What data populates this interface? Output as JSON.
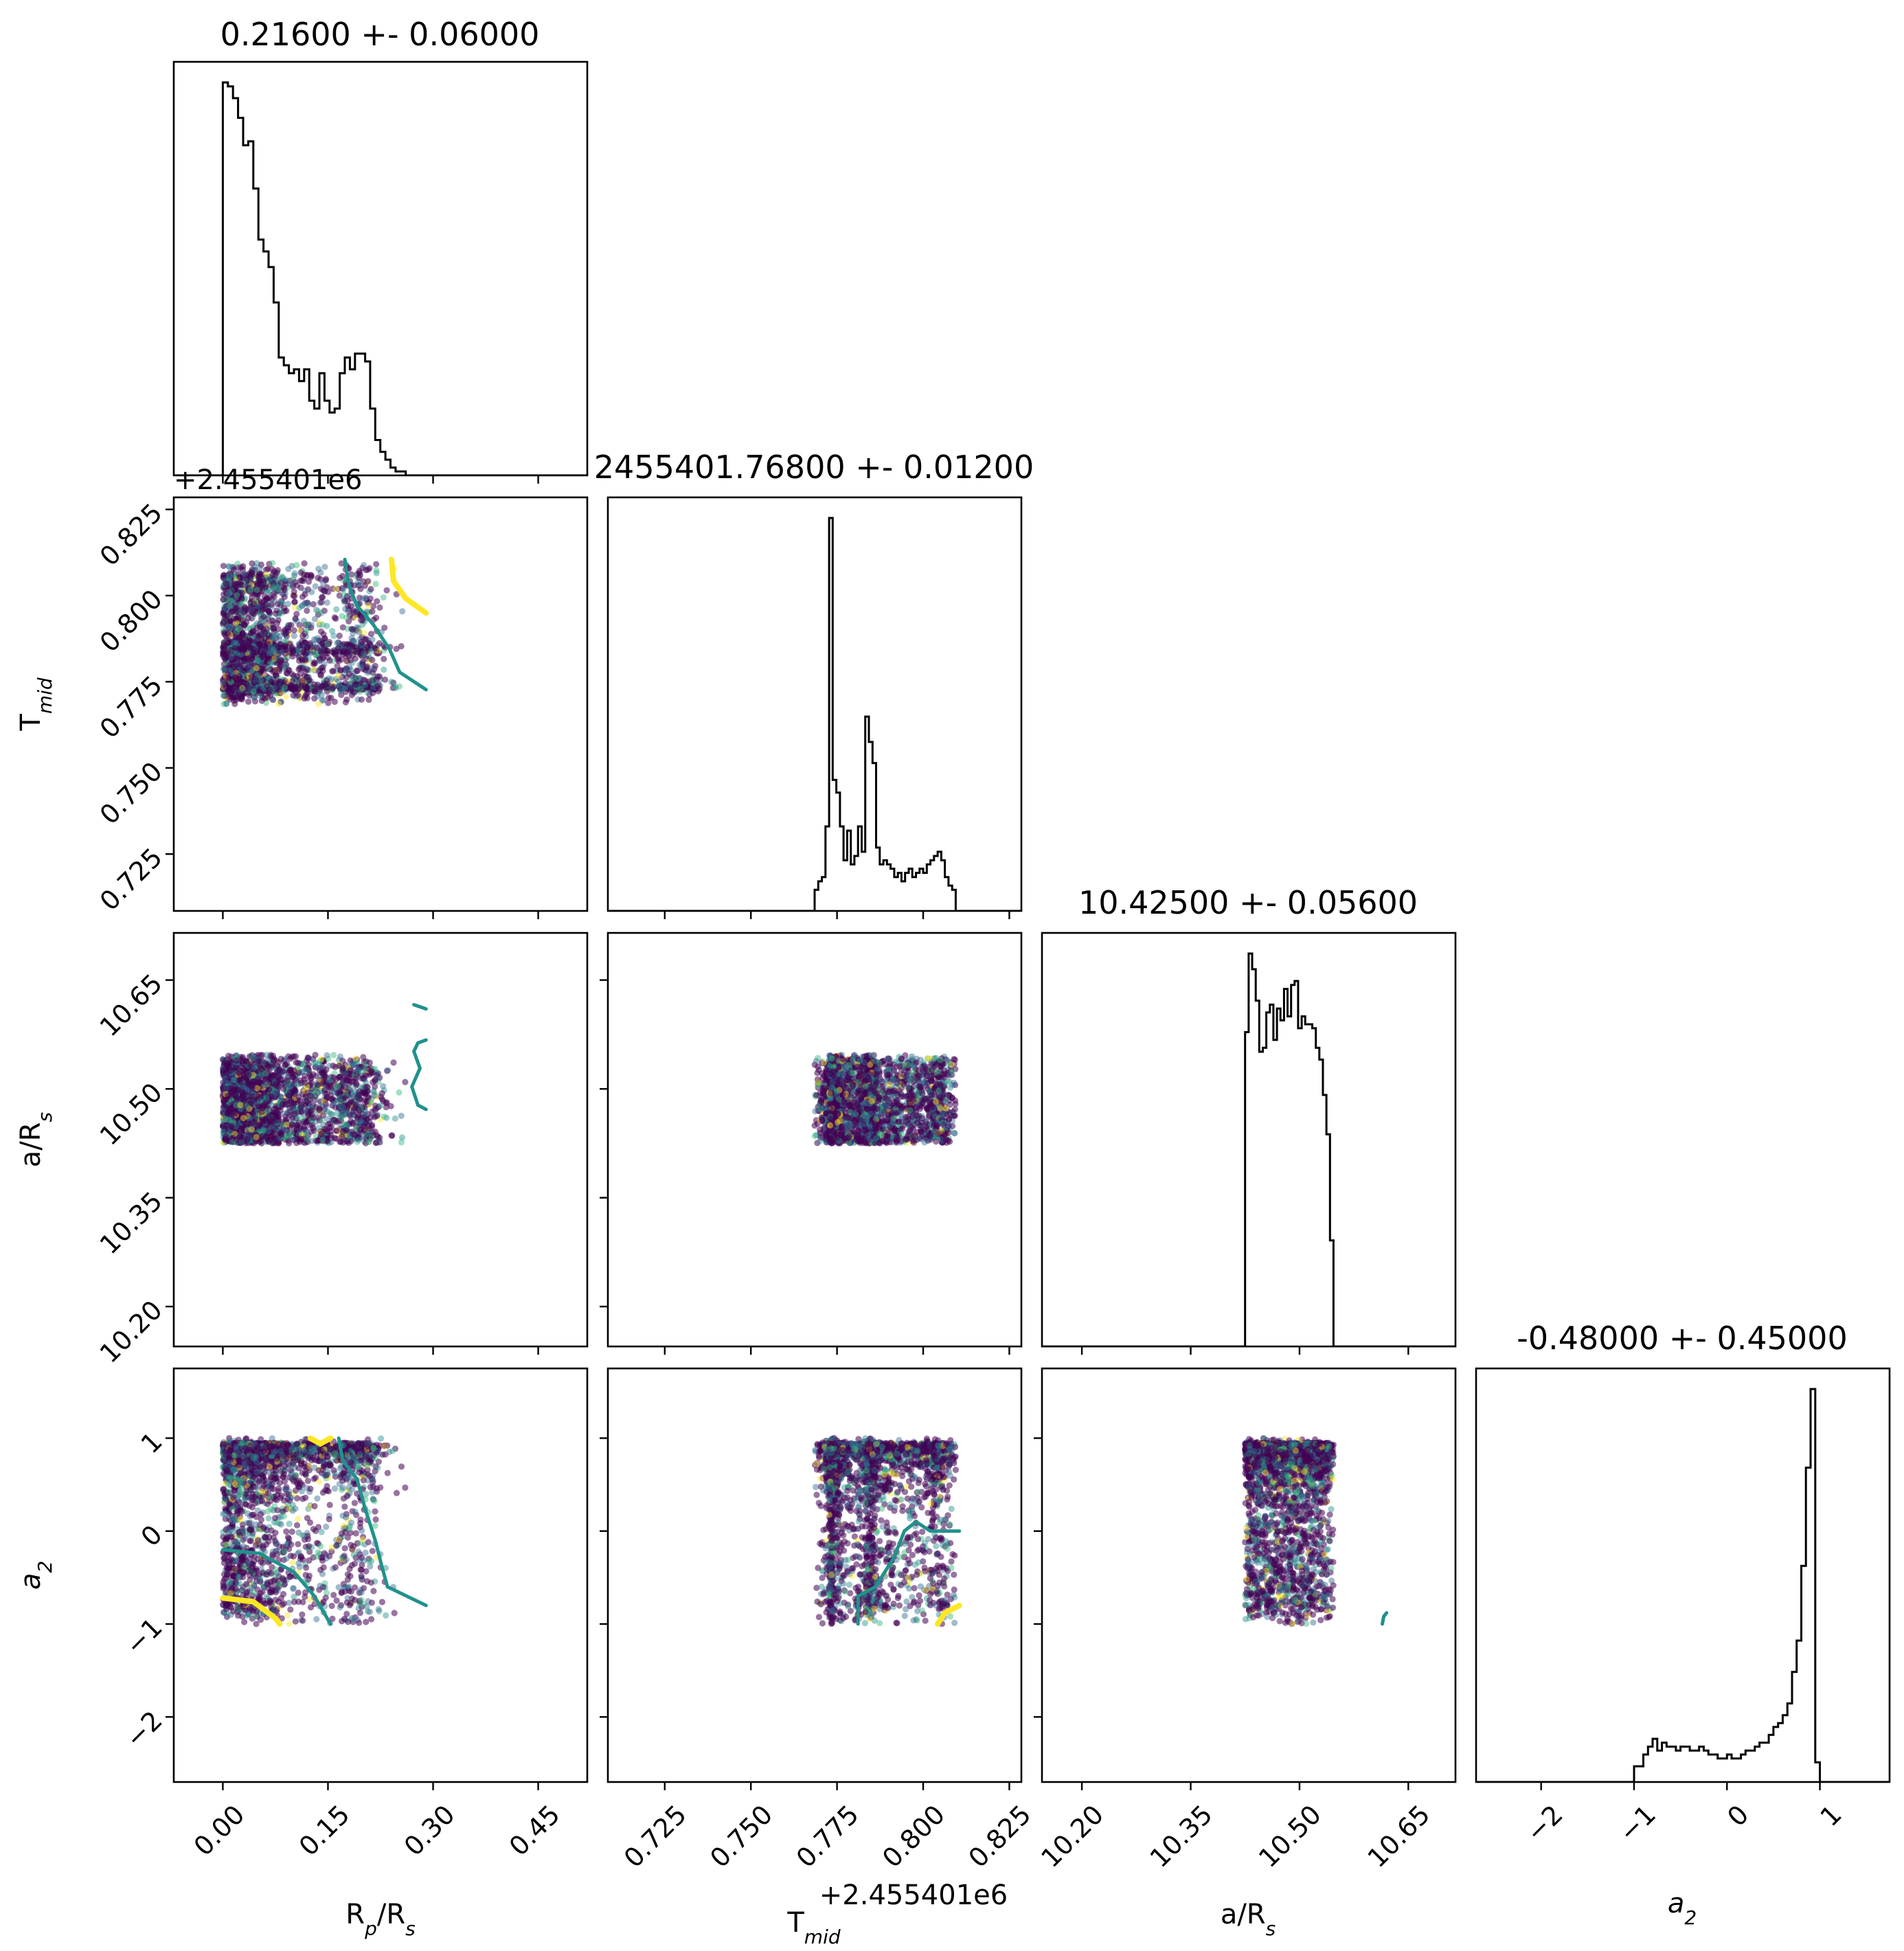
{
  "chart_data": {
    "type": "scatter",
    "figure_kind": "corner-plot",
    "parameters": [
      {
        "key": "rp",
        "label_main": "R",
        "label_sub": "p",
        "label_tail": "/R",
        "label_sub2": "s",
        "range": [
          -0.07,
          0.52
        ],
        "ticks": [
          0.0,
          0.15,
          0.3,
          0.45
        ],
        "tick_labels": [
          "0.00",
          "0.15",
          "0.30",
          "0.45"
        ],
        "sample_range": [
          0.0,
          0.29
        ],
        "title": "0.21600 +- 0.06000",
        "offset_text": ""
      },
      {
        "key": "tmid",
        "label_main": "T",
        "label_sub": "mid",
        "label_tail": "",
        "label_sub2": "",
        "range": [
          0.7085,
          0.8285
        ],
        "ticks": [
          0.725,
          0.75,
          0.775,
          0.8,
          0.825
        ],
        "tick_labels": [
          "0.725",
          "0.750",
          "0.775",
          "0.800",
          "0.825"
        ],
        "sample_range": [
          0.7685,
          0.8105
        ],
        "title": "2455401.76800 +- 0.01200",
        "offset_text": "+2.455401e6"
      },
      {
        "key": "ars",
        "label_main": "a/R",
        "label_sub": "s",
        "label_tail": "",
        "label_sub2": "",
        "range": [
          10.145,
          10.715
        ],
        "ticks": [
          10.2,
          10.35,
          10.5,
          10.65
        ],
        "tick_labels": [
          "10.20",
          "10.35",
          "10.50",
          "10.65"
        ],
        "sample_range": [
          10.425,
          10.62
        ],
        "title": "10.42500 +- 0.05600",
        "offset_text": ""
      },
      {
        "key": "a2",
        "label_main": "a",
        "label_sub": "2",
        "label_tail": "",
        "label_sub2": "",
        "italic": true,
        "range": [
          -2.7,
          1.75
        ],
        "ticks": [
          -2,
          -1,
          0,
          1
        ],
        "tick_labels": [
          "−2",
          "−1",
          "0",
          "1"
        ],
        "sample_range": [
          -1.0,
          1.0
        ],
        "title": "-0.48000 +- 0.45000",
        "offset_text": ""
      }
    ],
    "row_offset_text": "+2.455401e6",
    "histograms": [
      {
        "param": "rp",
        "edges_start": 0.0,
        "bin_width": 0.00725,
        "values": [
          100,
          99,
          96,
          91,
          84,
          85,
          73,
          60,
          57,
          53,
          44,
          30,
          28,
          26,
          27,
          24,
          27,
          19,
          17,
          26,
          19,
          16,
          17,
          26,
          30,
          27,
          31,
          31,
          29,
          17,
          9,
          6,
          4,
          2,
          1,
          1,
          0,
          0,
          0,
          0
        ]
      },
      {
        "param": "tmid",
        "edges_start": 0.7685,
        "bin_width": 0.00105,
        "values": [
          5,
          7,
          8,
          20,
          93,
          31,
          28,
          20,
          12,
          19,
          11,
          13,
          20,
          14,
          46,
          40,
          35,
          15,
          11,
          12,
          11,
          10,
          8,
          9,
          7,
          9,
          10,
          8,
          9,
          10,
          9,
          11,
          12,
          13,
          14,
          12,
          8,
          6,
          5,
          0
        ]
      },
      {
        "param": "ars",
        "edges_start": 10.425,
        "bin_width": 0.004875,
        "values": [
          80,
          100,
          96,
          88,
          75,
          76,
          85,
          87,
          78,
          86,
          83,
          91,
          84,
          92,
          93,
          81,
          84,
          82,
          82,
          81,
          76,
          73,
          64,
          54,
          27,
          0,
          0,
          0,
          0,
          0,
          0,
          0,
          0,
          0,
          0,
          0,
          0,
          0,
          0,
          0
        ]
      },
      {
        "param": "a2",
        "edges_start": -1.0,
        "bin_width": 0.05,
        "values": [
          4,
          4,
          7,
          9,
          11,
          8,
          10,
          9,
          9,
          8,
          9,
          9,
          8,
          8,
          9,
          8,
          7,
          7,
          6,
          6,
          7,
          6,
          6,
          7,
          8,
          8,
          9,
          10,
          10,
          12,
          14,
          15,
          17,
          20,
          28,
          36,
          55,
          80,
          100,
          5
        ]
      }
    ],
    "scatter_color_map": [
      "#440154",
      "#31688e",
      "#21918c",
      "#35b779",
      "#fde725"
    ],
    "contour_levels": [
      "#21918c",
      "#fde725"
    ],
    "panels_shown": "lower-triangle"
  }
}
